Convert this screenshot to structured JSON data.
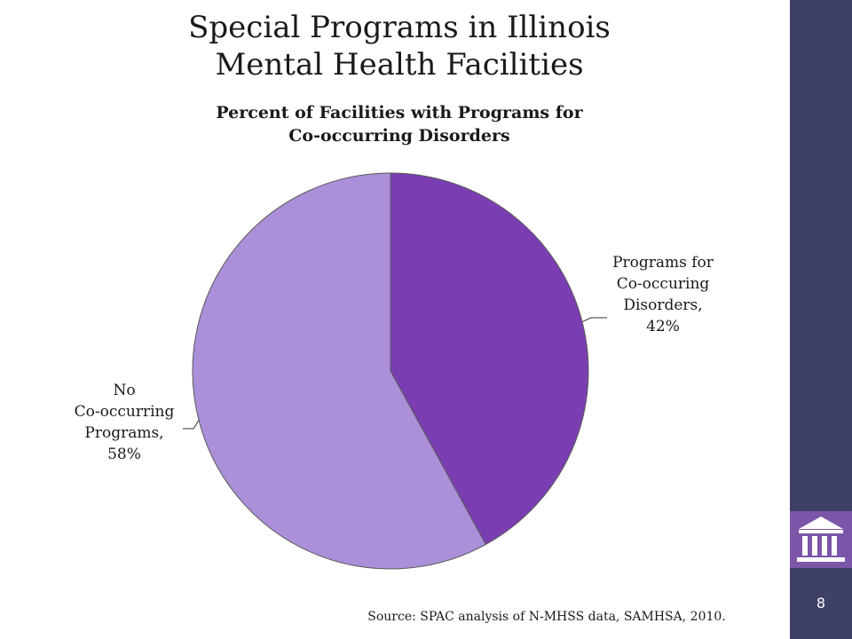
{
  "slide": {
    "title_line1": "Special Programs in Illinois",
    "title_line2": "Mental Health Facilities",
    "source": "Source: SPAC analysis of N-MHSS data, SAMHSA, 2010.",
    "page_number": "8",
    "logo_icon": "building-columns-icon"
  },
  "colors": {
    "sidebar": "#3e4066",
    "logo_bg": "#7b55a8",
    "slice_programs": "#7a3eb2",
    "slice_no_programs": "#ab8fd9"
  },
  "chart_data": {
    "type": "pie",
    "title_line1": "Percent of Facilities with Programs for",
    "title_line2": "Co-occurring Disorders",
    "slices": [
      {
        "label_lines": [
          "Programs for",
          "Co-occuring",
          "Disorders,",
          "42%"
        ],
        "value": 42,
        "color": "#7a3eb2"
      },
      {
        "label_lines": [
          "No",
          "Co-occurring",
          "Programs,",
          "58%"
        ],
        "value": 58,
        "color": "#ab8fd9"
      }
    ]
  }
}
